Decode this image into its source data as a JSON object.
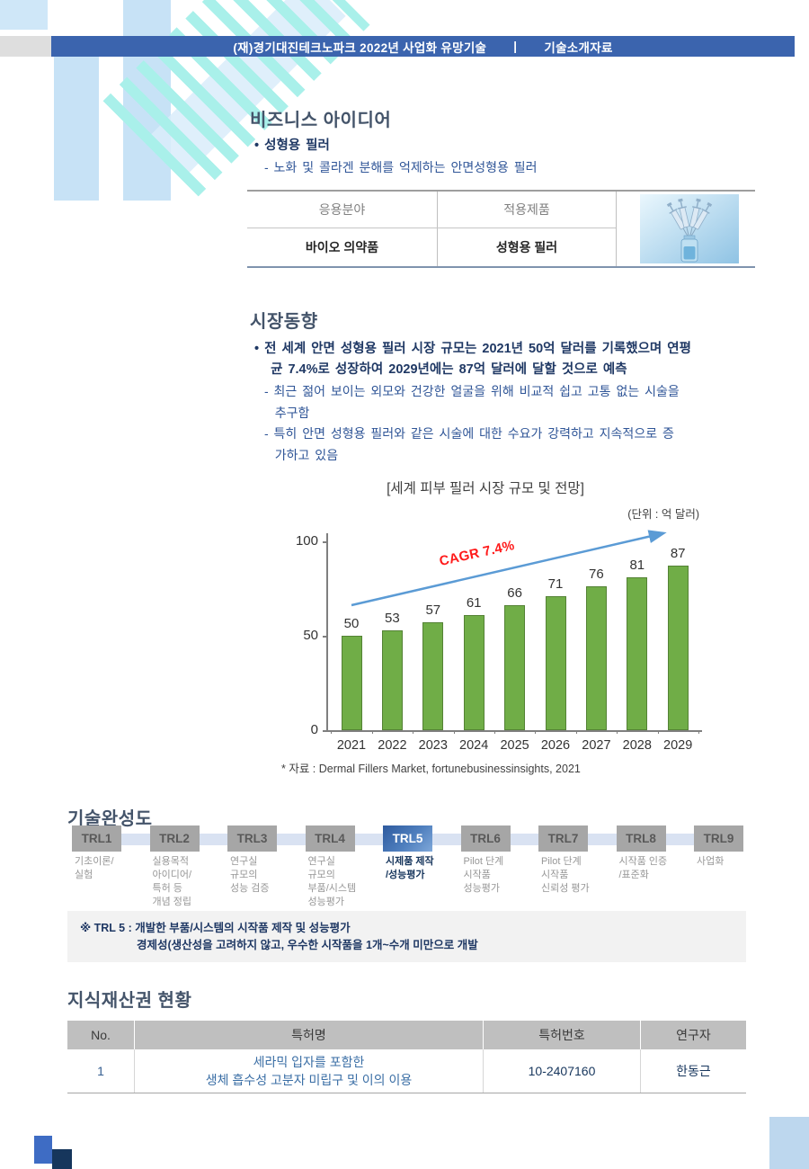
{
  "header": {
    "left": "(재)경기대진테크노파크 2022년 사업화 유망기술",
    "divider": "|",
    "right": "기술소개자료"
  },
  "colors": {
    "header_bar": "#3B64AE",
    "section_title": "#44546A",
    "bullet_text": "#1F3864",
    "sub_text": "#2F5597",
    "decor_light_blue": "#C7E2F6",
    "decor_cyan": "#A9F0EA",
    "trl_box_gray": "#A6A6A6",
    "trl_active_blue": "#2E5A9E",
    "trl_band": "#D9E2F2",
    "note_bg": "#F2F2F2",
    "table_header_bg": "#BFBFBF"
  },
  "business": {
    "section_title": "비즈니스 아이디어",
    "bullet": "• 성형용 필러",
    "sub": "- 노화 및 콜라겐 분해를 억제하는 안면성형용 필러",
    "table": {
      "col1_header": "응용분야",
      "col2_header": "적용제품",
      "col1_value": "바이오 의약품",
      "col2_value": "성형용 필러",
      "image_name": "syringes-in-vial"
    }
  },
  "market": {
    "section_title": "시장동향",
    "bullet": "• 전 세계 안면 성형용 필러 시장 규모는 2021년 50억 달러를 기록했으며 연평\n   균 7.4%로 성장하여 2029년에는 87억 달러에 달할 것으로 예측",
    "subs": "- 최근 젊어 보이는 외모와 건강한 얼굴을 위해 비교적 쉽고 고통 없는 시술을\n  추구함\n- 특히 안면 성형용 필러와 같은 시술에 대한 수요가 강력하고 지속적으로 증\n  가하고 있음"
  },
  "chart_data": {
    "type": "bar",
    "title": "[세계 피부 필러 시장 규모 및 전망]",
    "unit_label": "(단위 : 억 달러)",
    "categories": [
      "2021",
      "2022",
      "2023",
      "2024",
      "2025",
      "2026",
      "2027",
      "2028",
      "2029"
    ],
    "values": [
      50,
      53,
      57,
      61,
      66,
      71,
      76,
      81,
      87
    ],
    "yticks": [
      0,
      50,
      100
    ],
    "ylim": [
      0,
      100
    ],
    "grid": false,
    "bar_color": "#70AD47",
    "bar_border_color": "#548235",
    "trend_label": "CAGR 7.4%",
    "trend_color": "#FF1A1A",
    "arrow_color": "#5B9BD5",
    "source": "* 자료 : Dermal Fillers Market, fortunebusinessinsights, 2021"
  },
  "trl": {
    "section_title": "기술완성도",
    "levels": [
      {
        "label": "TRL1",
        "desc": "기초이론/\n실험",
        "active": false
      },
      {
        "label": "TRL2",
        "desc": "실용목적\n아이디어/\n특허 등\n개념 정립",
        "active": false
      },
      {
        "label": "TRL3",
        "desc": "연구실\n규모의\n성능 검증",
        "active": false
      },
      {
        "label": "TRL4",
        "desc": "연구실\n규모의\n부품/시스템\n성능평가",
        "active": false
      },
      {
        "label": "TRL5",
        "desc": "시제품 제작\n/성능평가",
        "active": true
      },
      {
        "label": "TRL6",
        "desc": "Pilot 단계\n시작품\n성능평가",
        "active": false
      },
      {
        "label": "TRL7",
        "desc": "Pilot 단계\n시작품\n신뢰성 평가",
        "active": false
      },
      {
        "label": "TRL8",
        "desc": "시작품 인증\n/표준화",
        "active": false
      },
      {
        "label": "TRL9",
        "desc": "사업화",
        "active": false
      }
    ],
    "note_line1": "※ TRL 5 : 개발한 부품/시스템의 시작품 제작 및 성능평가",
    "note_line2": "경제성(생산성을 고려하지 않고, 우수한 시작품을 1개~수개 미만으로 개발"
  },
  "ip": {
    "section_title": "지식재산권 현황",
    "headers": [
      "No.",
      "특허명",
      "특허번호",
      "연구자"
    ],
    "rows": [
      {
        "no": "1",
        "name": "세라믹 입자를 포함한\n생체 흡수성 고분자 미립구 및 이의 이용",
        "number": "10-2407160",
        "researcher": "한동근"
      }
    ]
  }
}
